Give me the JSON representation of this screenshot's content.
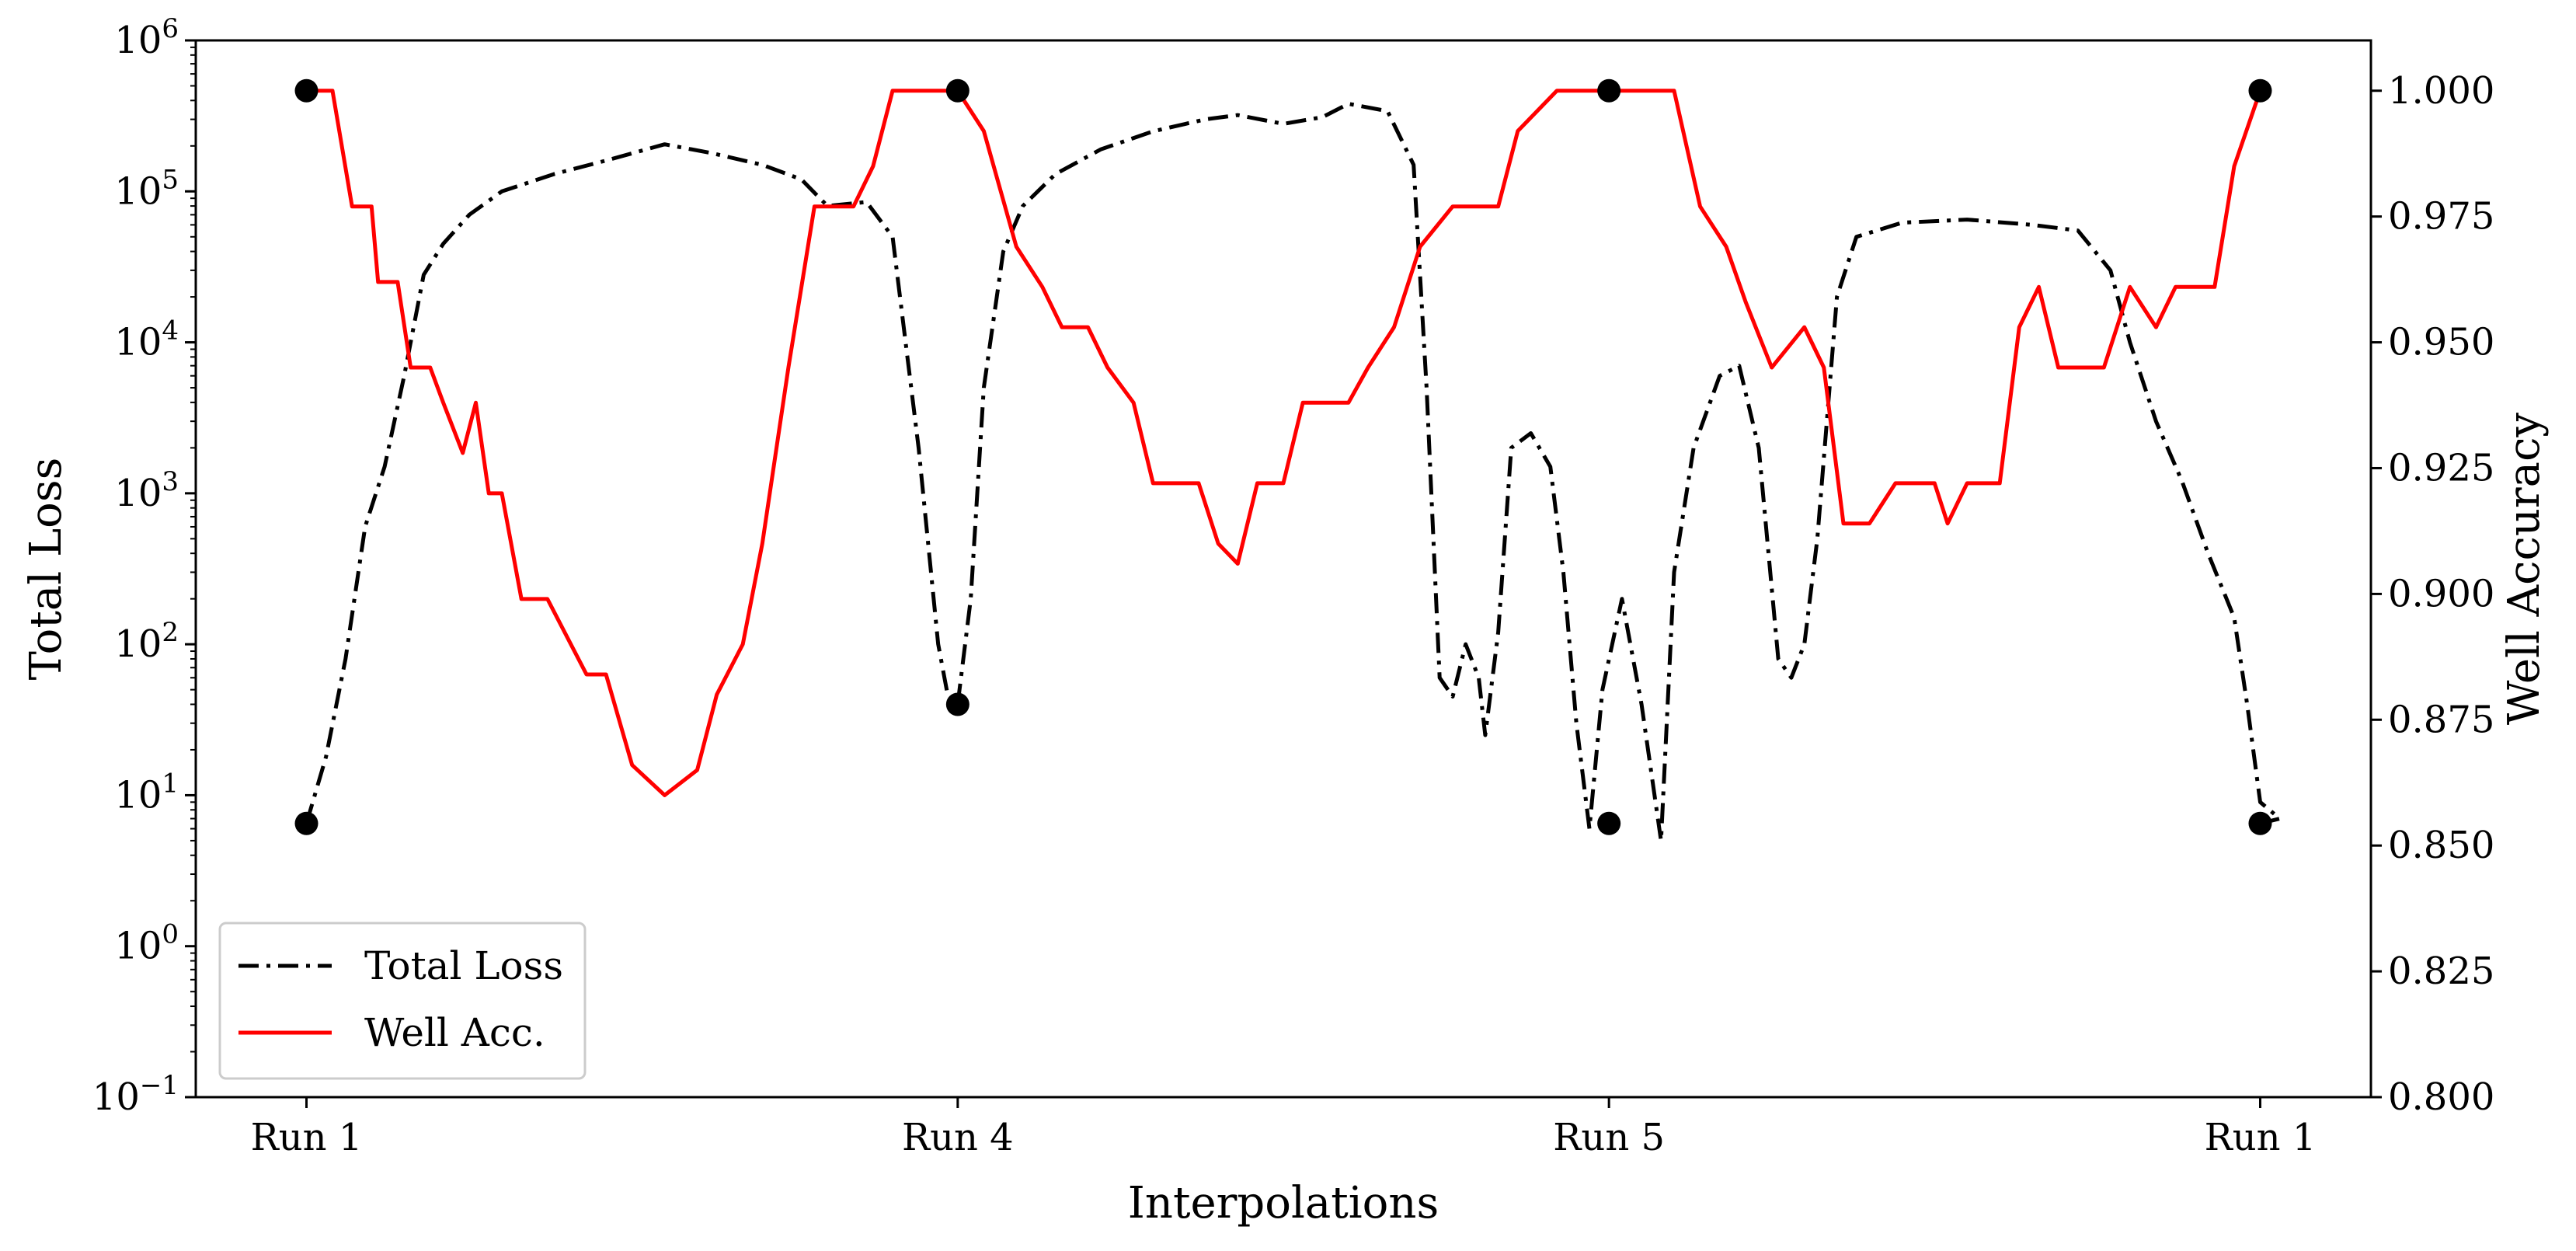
{
  "chart_data": {
    "type": "line",
    "xlabel": "Interpolations",
    "ylabel_left": "Total Loss",
    "ylabel_right": "Well Accuracy",
    "x_ticks": [
      {
        "x": 0,
        "label": "Run 1"
      },
      {
        "x": 1,
        "label": "Run 4"
      },
      {
        "x": 2,
        "label": "Run 5"
      },
      {
        "x": 3,
        "label": "Run 1"
      }
    ],
    "xlim": [
      -0.17,
      3.17
    ],
    "y_left": {
      "scale": "log",
      "ylim_exp": [
        -1,
        6
      ],
      "ticks": [
        {
          "exp": -1,
          "base": "10",
          "sup": "−1"
        },
        {
          "exp": 0,
          "base": "10",
          "sup": "0"
        },
        {
          "exp": 1,
          "base": "10",
          "sup": "1"
        },
        {
          "exp": 2,
          "base": "10",
          "sup": "2"
        },
        {
          "exp": 3,
          "base": "10",
          "sup": "3"
        },
        {
          "exp": 4,
          "base": "10",
          "sup": "4"
        },
        {
          "exp": 5,
          "base": "10",
          "sup": "5"
        },
        {
          "exp": 6,
          "base": "10",
          "sup": "6"
        }
      ]
    },
    "y_right": {
      "scale": "linear",
      "ylim": [
        0.8,
        1.01
      ],
      "ticks": [
        "0.800",
        "0.825",
        "0.850",
        "0.875",
        "0.900",
        "0.925",
        "0.950",
        "0.975",
        "1.000"
      ]
    },
    "legend": {
      "placement": "lower-left",
      "entries": [
        {
          "label": "Total Loss",
          "style": "dash-dot",
          "color": "#000000"
        },
        {
          "label": "Well Acc.",
          "style": "solid",
          "color": "#ff0000"
        }
      ]
    },
    "series": [
      {
        "name": "Total Loss",
        "axis": "left",
        "color": "#000000",
        "style": "dash-dot",
        "points": [
          [
            0.0,
            6.5
          ],
          [
            0.03,
            18
          ],
          [
            0.06,
            80
          ],
          [
            0.09,
            600
          ],
          [
            0.12,
            1500
          ],
          [
            0.15,
            6000
          ],
          [
            0.18,
            28000
          ],
          [
            0.21,
            45000
          ],
          [
            0.25,
            70000
          ],
          [
            0.3,
            100000
          ],
          [
            0.38,
            130000
          ],
          [
            0.46,
            160000
          ],
          [
            0.55,
            205000
          ],
          [
            0.62,
            180000
          ],
          [
            0.7,
            150000
          ],
          [
            0.76,
            120000
          ],
          [
            0.8,
            80000
          ],
          [
            0.86,
            85000
          ],
          [
            0.9,
            50000
          ],
          [
            0.94,
            2000
          ],
          [
            0.97,
            100
          ],
          [
            0.985,
            45
          ],
          [
            1.0,
            40
          ],
          [
            1.02,
            200
          ],
          [
            1.04,
            5000
          ],
          [
            1.07,
            40000
          ],
          [
            1.1,
            80000
          ],
          [
            1.15,
            130000
          ],
          [
            1.22,
            190000
          ],
          [
            1.3,
            250000
          ],
          [
            1.38,
            300000
          ],
          [
            1.43,
            320000
          ],
          [
            1.5,
            280000
          ],
          [
            1.56,
            310000
          ],
          [
            1.6,
            380000
          ],
          [
            1.66,
            340000
          ],
          [
            1.7,
            150000
          ],
          [
            1.72,
            5000
          ],
          [
            1.74,
            60
          ],
          [
            1.76,
            45
          ],
          [
            1.78,
            100
          ],
          [
            1.8,
            60
          ],
          [
            1.81,
            25
          ],
          [
            1.83,
            120
          ],
          [
            1.85,
            2000
          ],
          [
            1.88,
            2500
          ],
          [
            1.91,
            1500
          ],
          [
            1.93,
            300
          ],
          [
            1.95,
            30
          ],
          [
            1.97,
            6
          ],
          [
            1.99,
            50
          ],
          [
            2.02,
            200
          ],
          [
            2.05,
            40
          ],
          [
            2.08,
            5
          ],
          [
            2.1,
            300
          ],
          [
            2.13,
            2000
          ],
          [
            2.17,
            6000
          ],
          [
            2.2,
            7000
          ],
          [
            2.23,
            2000
          ],
          [
            2.26,
            80
          ],
          [
            2.28,
            60
          ],
          [
            2.3,
            100
          ],
          [
            2.32,
            500
          ],
          [
            2.35,
            20000
          ],
          [
            2.38,
            50000
          ],
          [
            2.45,
            62000
          ],
          [
            2.55,
            65000
          ],
          [
            2.65,
            60000
          ],
          [
            2.72,
            55000
          ],
          [
            2.77,
            30000
          ],
          [
            2.8,
            10000
          ],
          [
            2.84,
            3000
          ],
          [
            2.88,
            1200
          ],
          [
            2.92,
            400
          ],
          [
            2.96,
            150
          ],
          [
            2.98,
            40
          ],
          [
            3.0,
            9
          ],
          [
            3.03,
            7
          ],
          [
            3.0,
            6.5
          ]
        ],
        "markers": [
          [
            0,
            6.5
          ],
          [
            1,
            40
          ],
          [
            2,
            6.5
          ],
          [
            3,
            6.5
          ]
        ]
      },
      {
        "name": "Well Acc.",
        "axis": "right",
        "color": "#ff0000",
        "style": "solid",
        "points": [
          [
            0.0,
            1.0
          ],
          [
            0.04,
            1.0
          ],
          [
            0.07,
            0.977
          ],
          [
            0.1,
            0.977
          ],
          [
            0.11,
            0.962
          ],
          [
            0.14,
            0.962
          ],
          [
            0.16,
            0.945
          ],
          [
            0.19,
            0.945
          ],
          [
            0.21,
            0.938
          ],
          [
            0.24,
            0.928
          ],
          [
            0.26,
            0.938
          ],
          [
            0.28,
            0.92
          ],
          [
            0.3,
            0.92
          ],
          [
            0.33,
            0.899
          ],
          [
            0.37,
            0.899
          ],
          [
            0.41,
            0.889
          ],
          [
            0.43,
            0.884
          ],
          [
            0.46,
            0.884
          ],
          [
            0.5,
            0.866
          ],
          [
            0.55,
            0.86
          ],
          [
            0.6,
            0.865
          ],
          [
            0.63,
            0.88
          ],
          [
            0.67,
            0.89
          ],
          [
            0.7,
            0.91
          ],
          [
            0.74,
            0.945
          ],
          [
            0.78,
            0.977
          ],
          [
            0.84,
            0.977
          ],
          [
            0.87,
            0.985
          ],
          [
            0.9,
            1.0
          ],
          [
            0.96,
            1.0
          ],
          [
            1.0,
            1.0
          ],
          [
            1.04,
            0.992
          ],
          [
            1.09,
            0.969
          ],
          [
            1.13,
            0.961
          ],
          [
            1.16,
            0.953
          ],
          [
            1.2,
            0.953
          ],
          [
            1.23,
            0.945
          ],
          [
            1.27,
            0.938
          ],
          [
            1.3,
            0.922
          ],
          [
            1.37,
            0.922
          ],
          [
            1.4,
            0.91
          ],
          [
            1.43,
            0.906
          ],
          [
            1.46,
            0.922
          ],
          [
            1.5,
            0.922
          ],
          [
            1.53,
            0.938
          ],
          [
            1.6,
            0.938
          ],
          [
            1.63,
            0.945
          ],
          [
            1.67,
            0.953
          ],
          [
            1.71,
            0.969
          ],
          [
            1.76,
            0.977
          ],
          [
            1.83,
            0.977
          ],
          [
            1.86,
            0.992
          ],
          [
            1.92,
            1.0
          ],
          [
            2.0,
            1.0
          ],
          [
            2.1,
            1.0
          ],
          [
            2.14,
            0.977
          ],
          [
            2.18,
            0.969
          ],
          [
            2.21,
            0.958
          ],
          [
            2.25,
            0.945
          ],
          [
            2.3,
            0.953
          ],
          [
            2.33,
            0.945
          ],
          [
            2.36,
            0.914
          ],
          [
            2.4,
            0.914
          ],
          [
            2.44,
            0.922
          ],
          [
            2.5,
            0.922
          ],
          [
            2.52,
            0.914
          ],
          [
            2.55,
            0.922
          ],
          [
            2.6,
            0.922
          ],
          [
            2.63,
            0.953
          ],
          [
            2.66,
            0.961
          ],
          [
            2.69,
            0.945
          ],
          [
            2.76,
            0.945
          ],
          [
            2.8,
            0.961
          ],
          [
            2.84,
            0.953
          ],
          [
            2.87,
            0.961
          ],
          [
            2.93,
            0.961
          ],
          [
            2.96,
            0.985
          ],
          [
            3.0,
            1.0
          ],
          [
            3.0,
            1.0
          ]
        ],
        "markers": [
          [
            0,
            1.0
          ],
          [
            1,
            1.0
          ],
          [
            2,
            1.0
          ],
          [
            3,
            1.0
          ]
        ]
      }
    ]
  }
}
